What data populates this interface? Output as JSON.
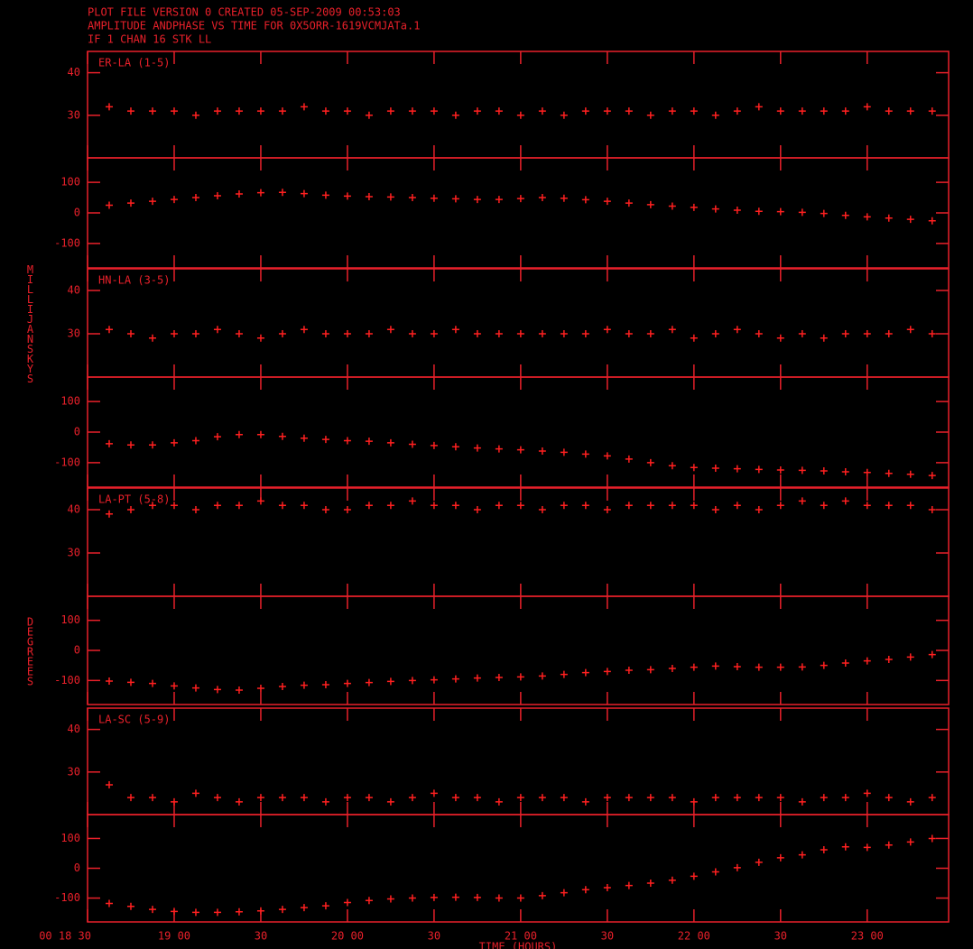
{
  "header": [
    "PLOT FILE VERSION 0  CREATED 05-SEP-2009 00:53:03",
    "AMPLITUDE ANDPHASE VS TIME  FOR  0X5ORR-1619VCMJATa.1",
    "IF 1   CHAN 16   STK LL"
  ],
  "chart_data": [
    {
      "type": "scatter",
      "title": "ER-LA (1-5)",
      "color": "#ff2020",
      "ylim": [
        20,
        45
      ],
      "yticks": [
        30,
        40
      ],
      "x": [
        18.625,
        18.75,
        18.875,
        19,
        19.125,
        19.25,
        19.375,
        19.5,
        19.625,
        19.75,
        19.875,
        20,
        20.125,
        20.25,
        20.375,
        20.5,
        20.625,
        20.75,
        20.875,
        21,
        21.125,
        21.25,
        21.375,
        21.5,
        21.625,
        21.75,
        21.875,
        22,
        22.125,
        22.25,
        22.375,
        22.5,
        22.625,
        22.75,
        22.875,
        23,
        23.125,
        23.25,
        23.375
      ],
      "values": [
        32,
        31,
        31,
        31,
        30,
        31,
        31,
        31,
        31,
        32,
        31,
        31,
        30,
        31,
        31,
        31,
        30,
        31,
        31,
        30,
        31,
        30,
        31,
        31,
        31,
        30,
        31,
        31,
        30,
        31,
        32,
        31,
        31,
        31,
        31,
        32,
        31,
        31,
        31
      ]
    },
    {
      "type": "scatter",
      "color": "#ff2020",
      "ylim": [
        -180,
        180
      ],
      "yticks": [
        -100,
        0,
        100
      ],
      "x": [
        18.625,
        18.75,
        18.875,
        19,
        19.125,
        19.25,
        19.375,
        19.5,
        19.625,
        19.75,
        19.875,
        20,
        20.125,
        20.25,
        20.375,
        20.5,
        20.625,
        20.75,
        20.875,
        21,
        21.125,
        21.25,
        21.375,
        21.5,
        21.625,
        21.75,
        21.875,
        22,
        22.125,
        22.25,
        22.375,
        22.5,
        22.625,
        22.75,
        22.875,
        23,
        23.125,
        23.25,
        23.375
      ],
      "values": [
        25,
        32,
        38,
        44,
        50,
        56,
        62,
        66,
        67,
        63,
        58,
        55,
        53,
        52,
        50,
        48,
        46,
        44,
        44,
        47,
        50,
        48,
        43,
        38,
        32,
        27,
        22,
        18,
        13,
        9,
        5,
        4,
        2,
        -2,
        -8,
        -13,
        -17,
        -21,
        -26
      ]
    },
    {
      "type": "scatter",
      "title": "HN-LA (3-5)",
      "ylabel": "MILLIJANSKYS",
      "color": "#ff2020",
      "ylim": [
        20,
        45
      ],
      "yticks": [
        30,
        40
      ],
      "x": [
        18.625,
        18.75,
        18.875,
        19,
        19.125,
        19.25,
        19.375,
        19.5,
        19.625,
        19.75,
        19.875,
        20,
        20.125,
        20.25,
        20.375,
        20.5,
        20.625,
        20.75,
        20.875,
        21,
        21.125,
        21.25,
        21.375,
        21.5,
        21.625,
        21.75,
        21.875,
        22,
        22.125,
        22.25,
        22.375,
        22.5,
        22.625,
        22.75,
        22.875,
        23,
        23.125,
        23.25,
        23.375
      ],
      "values": [
        31,
        30,
        29,
        30,
        30,
        31,
        30,
        29,
        30,
        31,
        30,
        30,
        30,
        31,
        30,
        30,
        31,
        30,
        30,
        30,
        30,
        30,
        30,
        31,
        30,
        30,
        31,
        29,
        30,
        31,
        30,
        29,
        30,
        29,
        30,
        30,
        30,
        31,
        30
      ]
    },
    {
      "type": "scatter",
      "color": "#ff2020",
      "ylim": [
        -180,
        180
      ],
      "yticks": [
        -100,
        0,
        100
      ],
      "x": [
        18.625,
        18.75,
        18.875,
        19,
        19.125,
        19.25,
        19.375,
        19.5,
        19.625,
        19.75,
        19.875,
        20,
        20.125,
        20.25,
        20.375,
        20.5,
        20.625,
        20.75,
        20.875,
        21,
        21.125,
        21.25,
        21.375,
        21.5,
        21.625,
        21.75,
        21.875,
        22,
        22.125,
        22.25,
        22.375,
        22.5,
        22.625,
        22.75,
        22.875,
        23,
        23.125,
        23.25,
        23.375
      ],
      "values": [
        -38,
        -42,
        -42,
        -35,
        -28,
        -15,
        -8,
        -8,
        -14,
        -20,
        -24,
        -28,
        -30,
        -35,
        -40,
        -44,
        -48,
        -52,
        -55,
        -58,
        -62,
        -66,
        -72,
        -78,
        -88,
        -100,
        -110,
        -116,
        -118,
        -120,
        -122,
        -124,
        -125,
        -127,
        -130,
        -132,
        -135,
        -138,
        -142
      ]
    },
    {
      "type": "scatter",
      "title": "LA-PT (5-8)",
      "color": "#ff2020",
      "ylim": [
        20,
        45
      ],
      "yticks": [
        30,
        40
      ],
      "x": [
        18.625,
        18.75,
        18.875,
        19,
        19.125,
        19.25,
        19.375,
        19.5,
        19.625,
        19.75,
        19.875,
        20,
        20.125,
        20.25,
        20.375,
        20.5,
        20.625,
        20.75,
        20.875,
        21,
        21.125,
        21.25,
        21.375,
        21.5,
        21.625,
        21.75,
        21.875,
        22,
        22.125,
        22.25,
        22.375,
        22.5,
        22.625,
        22.75,
        22.875,
        23,
        23.125,
        23.25,
        23.375
      ],
      "values": [
        39,
        40,
        41,
        41,
        40,
        41,
        41,
        42,
        41,
        41,
        40,
        40,
        41,
        41,
        42,
        41,
        41,
        40,
        41,
        41,
        40,
        41,
        41,
        40,
        41,
        41,
        41,
        41,
        40,
        41,
        40,
        41,
        42,
        41,
        42,
        41,
        41,
        41,
        40
      ]
    },
    {
      "type": "scatter",
      "ylabel": "DEGREES",
      "color": "#ff2020",
      "ylim": [
        -180,
        180
      ],
      "yticks": [
        -100,
        0,
        100
      ],
      "x": [
        18.625,
        18.75,
        18.875,
        19,
        19.125,
        19.25,
        19.375,
        19.5,
        19.625,
        19.75,
        19.875,
        20,
        20.125,
        20.25,
        20.375,
        20.5,
        20.625,
        20.75,
        20.875,
        21,
        21.125,
        21.25,
        21.375,
        21.5,
        21.625,
        21.75,
        21.875,
        22,
        22.125,
        22.25,
        22.375,
        22.5,
        22.625,
        22.75,
        22.875,
        23,
        23.125,
        23.25,
        23.375
      ],
      "values": [
        -102,
        -106,
        -110,
        -118,
        -125,
        -130,
        -132,
        -126,
        -120,
        -116,
        -114,
        -110,
        -107,
        -103,
        -100,
        -98,
        -95,
        -92,
        -90,
        -88,
        -85,
        -80,
        -74,
        -70,
        -66,
        -64,
        -60,
        -56,
        -52,
        -54,
        -56,
        -56,
        -55,
        -50,
        -42,
        -35,
        -30,
        -22,
        -14
      ]
    },
    {
      "type": "scatter",
      "title": "LA-SC (5-9)",
      "color": "#ff2020",
      "ylim": [
        20,
        45
      ],
      "yticks": [
        30,
        40
      ],
      "x": [
        18.625,
        18.75,
        18.875,
        19,
        19.125,
        19.25,
        19.375,
        19.5,
        19.625,
        19.75,
        19.875,
        20,
        20.125,
        20.25,
        20.375,
        20.5,
        20.625,
        20.75,
        20.875,
        21,
        21.125,
        21.25,
        21.375,
        21.5,
        21.625,
        21.75,
        21.875,
        22,
        22.125,
        22.25,
        22.375,
        22.5,
        22.625,
        22.75,
        22.875,
        23,
        23.125,
        23.25,
        23.375
      ],
      "values": [
        27,
        24,
        24,
        23,
        25,
        24,
        23,
        24,
        24,
        24,
        23,
        24,
        24,
        23,
        24,
        25,
        24,
        24,
        23,
        24,
        24,
        24,
        23,
        24,
        24,
        24,
        24,
        23,
        24,
        24,
        24,
        24,
        23,
        24,
        24,
        25,
        24,
        23,
        24
      ]
    },
    {
      "type": "scatter",
      "color": "#ff2020",
      "ylim": [
        -180,
        180
      ],
      "yticks": [
        -100,
        0,
        100
      ],
      "xlabel": "TIME (HOURS)",
      "xlim": [
        18.5,
        23.47
      ],
      "xticks": [
        {
          "value": 18.5,
          "label": "00 18 30"
        },
        {
          "value": 19,
          "label": "19 00"
        },
        {
          "value": 19.5,
          "label": "30"
        },
        {
          "value": 20,
          "label": "20 00"
        },
        {
          "value": 20.5,
          "label": "30"
        },
        {
          "value": 21,
          "label": "21 00"
        },
        {
          "value": 21.5,
          "label": "30"
        },
        {
          "value": 22,
          "label": "22 00"
        },
        {
          "value": 22.5,
          "label": "30"
        },
        {
          "value": 23,
          "label": "23 00"
        }
      ],
      "x": [
        18.625,
        18.75,
        18.875,
        19,
        19.125,
        19.25,
        19.375,
        19.5,
        19.625,
        19.75,
        19.875,
        20,
        20.125,
        20.25,
        20.375,
        20.5,
        20.625,
        20.75,
        20.875,
        21,
        21.125,
        21.25,
        21.375,
        21.5,
        21.625,
        21.75,
        21.875,
        22,
        22.125,
        22.25,
        22.375,
        22.5,
        22.625,
        22.75,
        22.875,
        23,
        23.125,
        23.25,
        23.375
      ],
      "values": [
        -118,
        -128,
        -138,
        -145,
        -148,
        -148,
        -146,
        -143,
        -138,
        -132,
        -126,
        -115,
        -108,
        -103,
        -100,
        -98,
        -97,
        -98,
        -100,
        -100,
        -92,
        -82,
        -72,
        -65,
        -58,
        -50,
        -40,
        -27,
        -12,
        2,
        20,
        35,
        45,
        62,
        72,
        70,
        78,
        88,
        100
      ]
    }
  ]
}
